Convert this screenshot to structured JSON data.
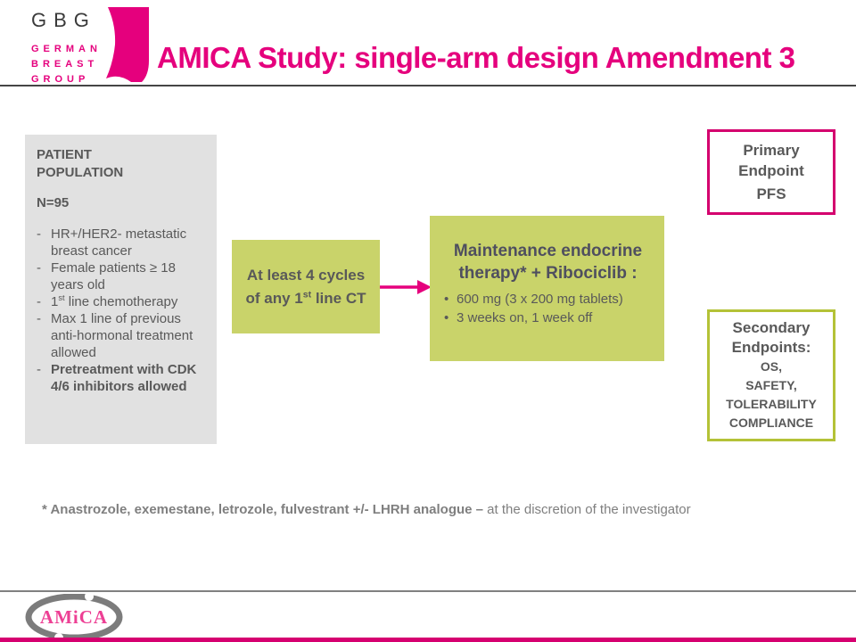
{
  "header": {
    "gbg_acronym": "GBG",
    "gbg_words": [
      "GERMAN",
      "BREAST",
      "GROUP"
    ],
    "title": "AMICA Study: single-arm design Amendment 3"
  },
  "patient_box": {
    "heading": "PATIENT\nPOPULATION",
    "n_label": "N=95",
    "criteria": [
      {
        "text": "HR+/HER2- metastatic breast cancer",
        "bold": false
      },
      {
        "text": "Female patients ≥ 18 years old",
        "bold": false
      },
      {
        "text": "1^st^ line chemotherapy",
        "bold": false
      },
      {
        "text": "Max 1 line of previous anti-hormonal treatment allowed",
        "bold": false
      },
      {
        "text": "Pretreatment with CDK 4/6 inhibitors allowed",
        "bold": true
      }
    ]
  },
  "cycles_box": {
    "line1": "At least 4 cycles",
    "line2": "of any 1^st^ line CT"
  },
  "maintenance_box": {
    "heading": "Maintenance endocrine therapy* + Ribociclib :",
    "bullets": [
      "600 mg (3 x 200 mg tablets)",
      "3 weeks on, 1 week off"
    ]
  },
  "primary_box": {
    "title": "Primary Endpoint",
    "value": "PFS"
  },
  "secondary_box": {
    "title": "Secondary Endpoints:",
    "items": [
      "OS,",
      "SAFETY,",
      "TOLERABILITY",
      "COMPLIANCE"
    ]
  },
  "footnote": {
    "bold_part": "* Anastrozole, exemestane, letrozole, fulvestrant +/- LHRH analogue –",
    "regular_part": "at the discretion of the investigator"
  },
  "footer": {
    "logo_text": "AMiCA"
  },
  "colors": {
    "magenta": "#e5007d",
    "magenta_border": "#d4006e",
    "green_box": "#c9d36a",
    "green_border": "#b4c237",
    "gray_box": "#e1e1e1",
    "text_dark": "#595959",
    "text_heading": "#4f4f5f",
    "text_gray": "#7f7f7f",
    "rule_dark": "#454545",
    "rule_gray": "#808080",
    "logo_gray": "#7c7c7c",
    "amica_pink": "#ed3f94",
    "footer_bar": "#d60070"
  }
}
